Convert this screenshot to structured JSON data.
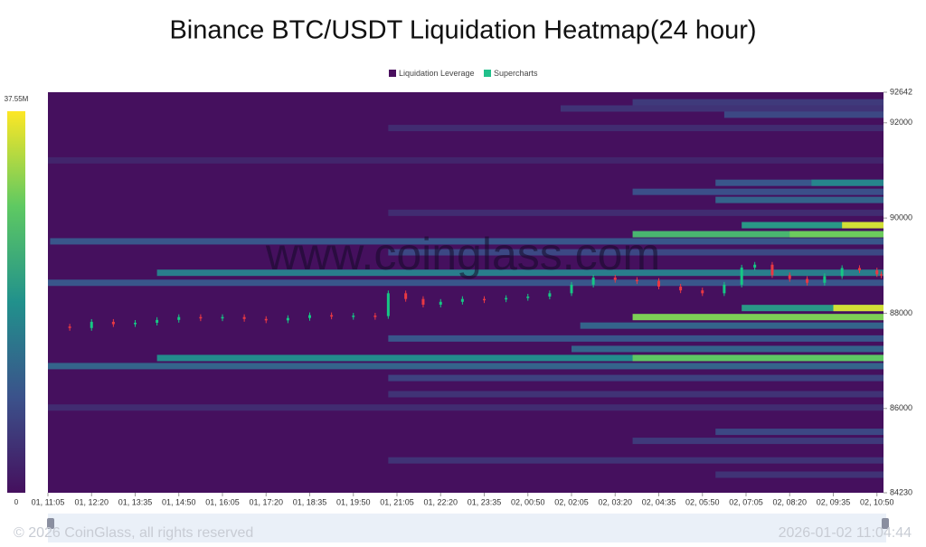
{
  "chart_data": {
    "type": "heatmap",
    "title": "Binance BTC/USDT Liquidation Heatmap(24 hour)",
    "legend": [
      {
        "name": "Liquidation Leverage",
        "color": "#4a0f5e"
      },
      {
        "name": "Supercharts",
        "color": "#21c08b"
      }
    ],
    "watermark": "www.coinglass.com",
    "footer_left": "© 2026 CoinGlass, all rights reserved",
    "footer_right": "2026-01-02 11:04:44",
    "colorscale": [
      "#45105e",
      "#3b528b",
      "#21918c",
      "#5ec962",
      "#fde725"
    ],
    "clim": [
      0,
      37550000
    ],
    "cticks": [
      0,
      {
        "value": 37550000,
        "label": "37.55M"
      }
    ],
    "categories": [
      "01, 11:05",
      "01, 12:20",
      "01, 13:35",
      "01, 14:50",
      "01, 16:05",
      "01, 17:20",
      "01, 18:35",
      "01, 19:50",
      "01, 21:05",
      "01, 22:20",
      "01, 23:35",
      "02, 00:50",
      "02, 02:05",
      "02, 03:20",
      "02, 04:35",
      "02, 05:50",
      "02, 07:05",
      "02, 08:20",
      "02, 09:35",
      "02, 10:50"
    ],
    "xlim": [
      0,
      19.15
    ],
    "ylim": [
      84230,
      92642
    ],
    "yticks": [
      84230,
      86000,
      88000,
      90000,
      92000,
      92642
    ],
    "bands": [
      {
        "price": 92430,
        "start": 13.4,
        "value": 6000000
      },
      {
        "price": 92300,
        "start": 11.75,
        "value": 5000000
      },
      {
        "price": 92170,
        "start": 15.5,
        "value": 8000000
      },
      {
        "price": 91890,
        "start": 7.8,
        "value": 4000000
      },
      {
        "price": 91210,
        "start": 0,
        "value": 3000000
      },
      {
        "price": 90740,
        "start": 15.3,
        "value": 10000000
      },
      {
        "price": 90740,
        "start": 17.5,
        "value": 17000000
      },
      {
        "price": 90550,
        "start": 13.4,
        "value": 9000000
      },
      {
        "price": 90380,
        "start": 15.3,
        "value": 12000000
      },
      {
        "price": 90110,
        "start": 7.8,
        "value": 4000000
      },
      {
        "price": 89850,
        "start": 15.9,
        "value": 20000000
      },
      {
        "price": 89850,
        "start": 18.2,
        "value": 35000000
      },
      {
        "price": 89660,
        "start": 13.4,
        "value": 25000000
      },
      {
        "price": 89660,
        "start": 17.0,
        "value": 29000000
      },
      {
        "price": 89510,
        "start": 0.05,
        "value": 10000000
      },
      {
        "price": 89280,
        "start": 7.8,
        "value": 8000000
      },
      {
        "price": 88850,
        "start": 2.5,
        "value": 16000000
      },
      {
        "price": 88640,
        "start": 0,
        "value": 10000000
      },
      {
        "price": 88110,
        "start": 15.9,
        "value": 20000000
      },
      {
        "price": 88110,
        "start": 18.0,
        "value": 35000000
      },
      {
        "price": 87920,
        "start": 13.4,
        "value": 30000000
      },
      {
        "price": 87740,
        "start": 12.2,
        "value": 12000000
      },
      {
        "price": 87470,
        "start": 7.8,
        "value": 10000000
      },
      {
        "price": 87250,
        "start": 12.0,
        "value": 12000000
      },
      {
        "price": 87060,
        "start": 2.5,
        "value": 18000000
      },
      {
        "price": 87060,
        "start": 13.4,
        "value": 28000000
      },
      {
        "price": 86890,
        "start": 0,
        "value": 12000000
      },
      {
        "price": 86640,
        "start": 7.8,
        "value": 7000000
      },
      {
        "price": 86300,
        "start": 7.8,
        "value": 5000000
      },
      {
        "price": 86020,
        "start": 0,
        "value": 4000000
      },
      {
        "price": 85510,
        "start": 15.3,
        "value": 8000000
      },
      {
        "price": 85320,
        "start": 13.4,
        "value": 6000000
      },
      {
        "price": 84910,
        "start": 7.8,
        "value": 5000000
      },
      {
        "price": 84610,
        "start": 15.3,
        "value": 5000000
      }
    ],
    "price": {
      "up_color": "#16c784",
      "down_color": "#ea3943",
      "x": [
        0,
        0.5,
        1,
        1.5,
        2,
        2.5,
        3,
        3.5,
        4,
        4.5,
        5,
        5.5,
        6,
        6.5,
        7,
        7.5,
        7.8,
        8.2,
        8.6,
        9,
        9.5,
        10,
        10.5,
        11,
        11.5,
        12,
        12.5,
        13,
        13.5,
        14,
        14.5,
        15,
        15.5,
        15.9,
        16.2,
        16.6,
        17,
        17.4,
        17.8,
        18.2,
        18.6,
        19,
        19.1
      ],
      "values": [
        87720,
        87690,
        87820,
        87770,
        87800,
        87860,
        87920,
        87900,
        87920,
        87880,
        87850,
        87900,
        87960,
        87930,
        87950,
        87940,
        88420,
        88300,
        88180,
        88240,
        88300,
        88290,
        88320,
        88350,
        88420,
        88600,
        88750,
        88700,
        88680,
        88560,
        88480,
        88420,
        88600,
        88960,
        89020,
        88800,
        88720,
        88640,
        88780,
        88950,
        88900,
        88820,
        88800
      ]
    }
  }
}
